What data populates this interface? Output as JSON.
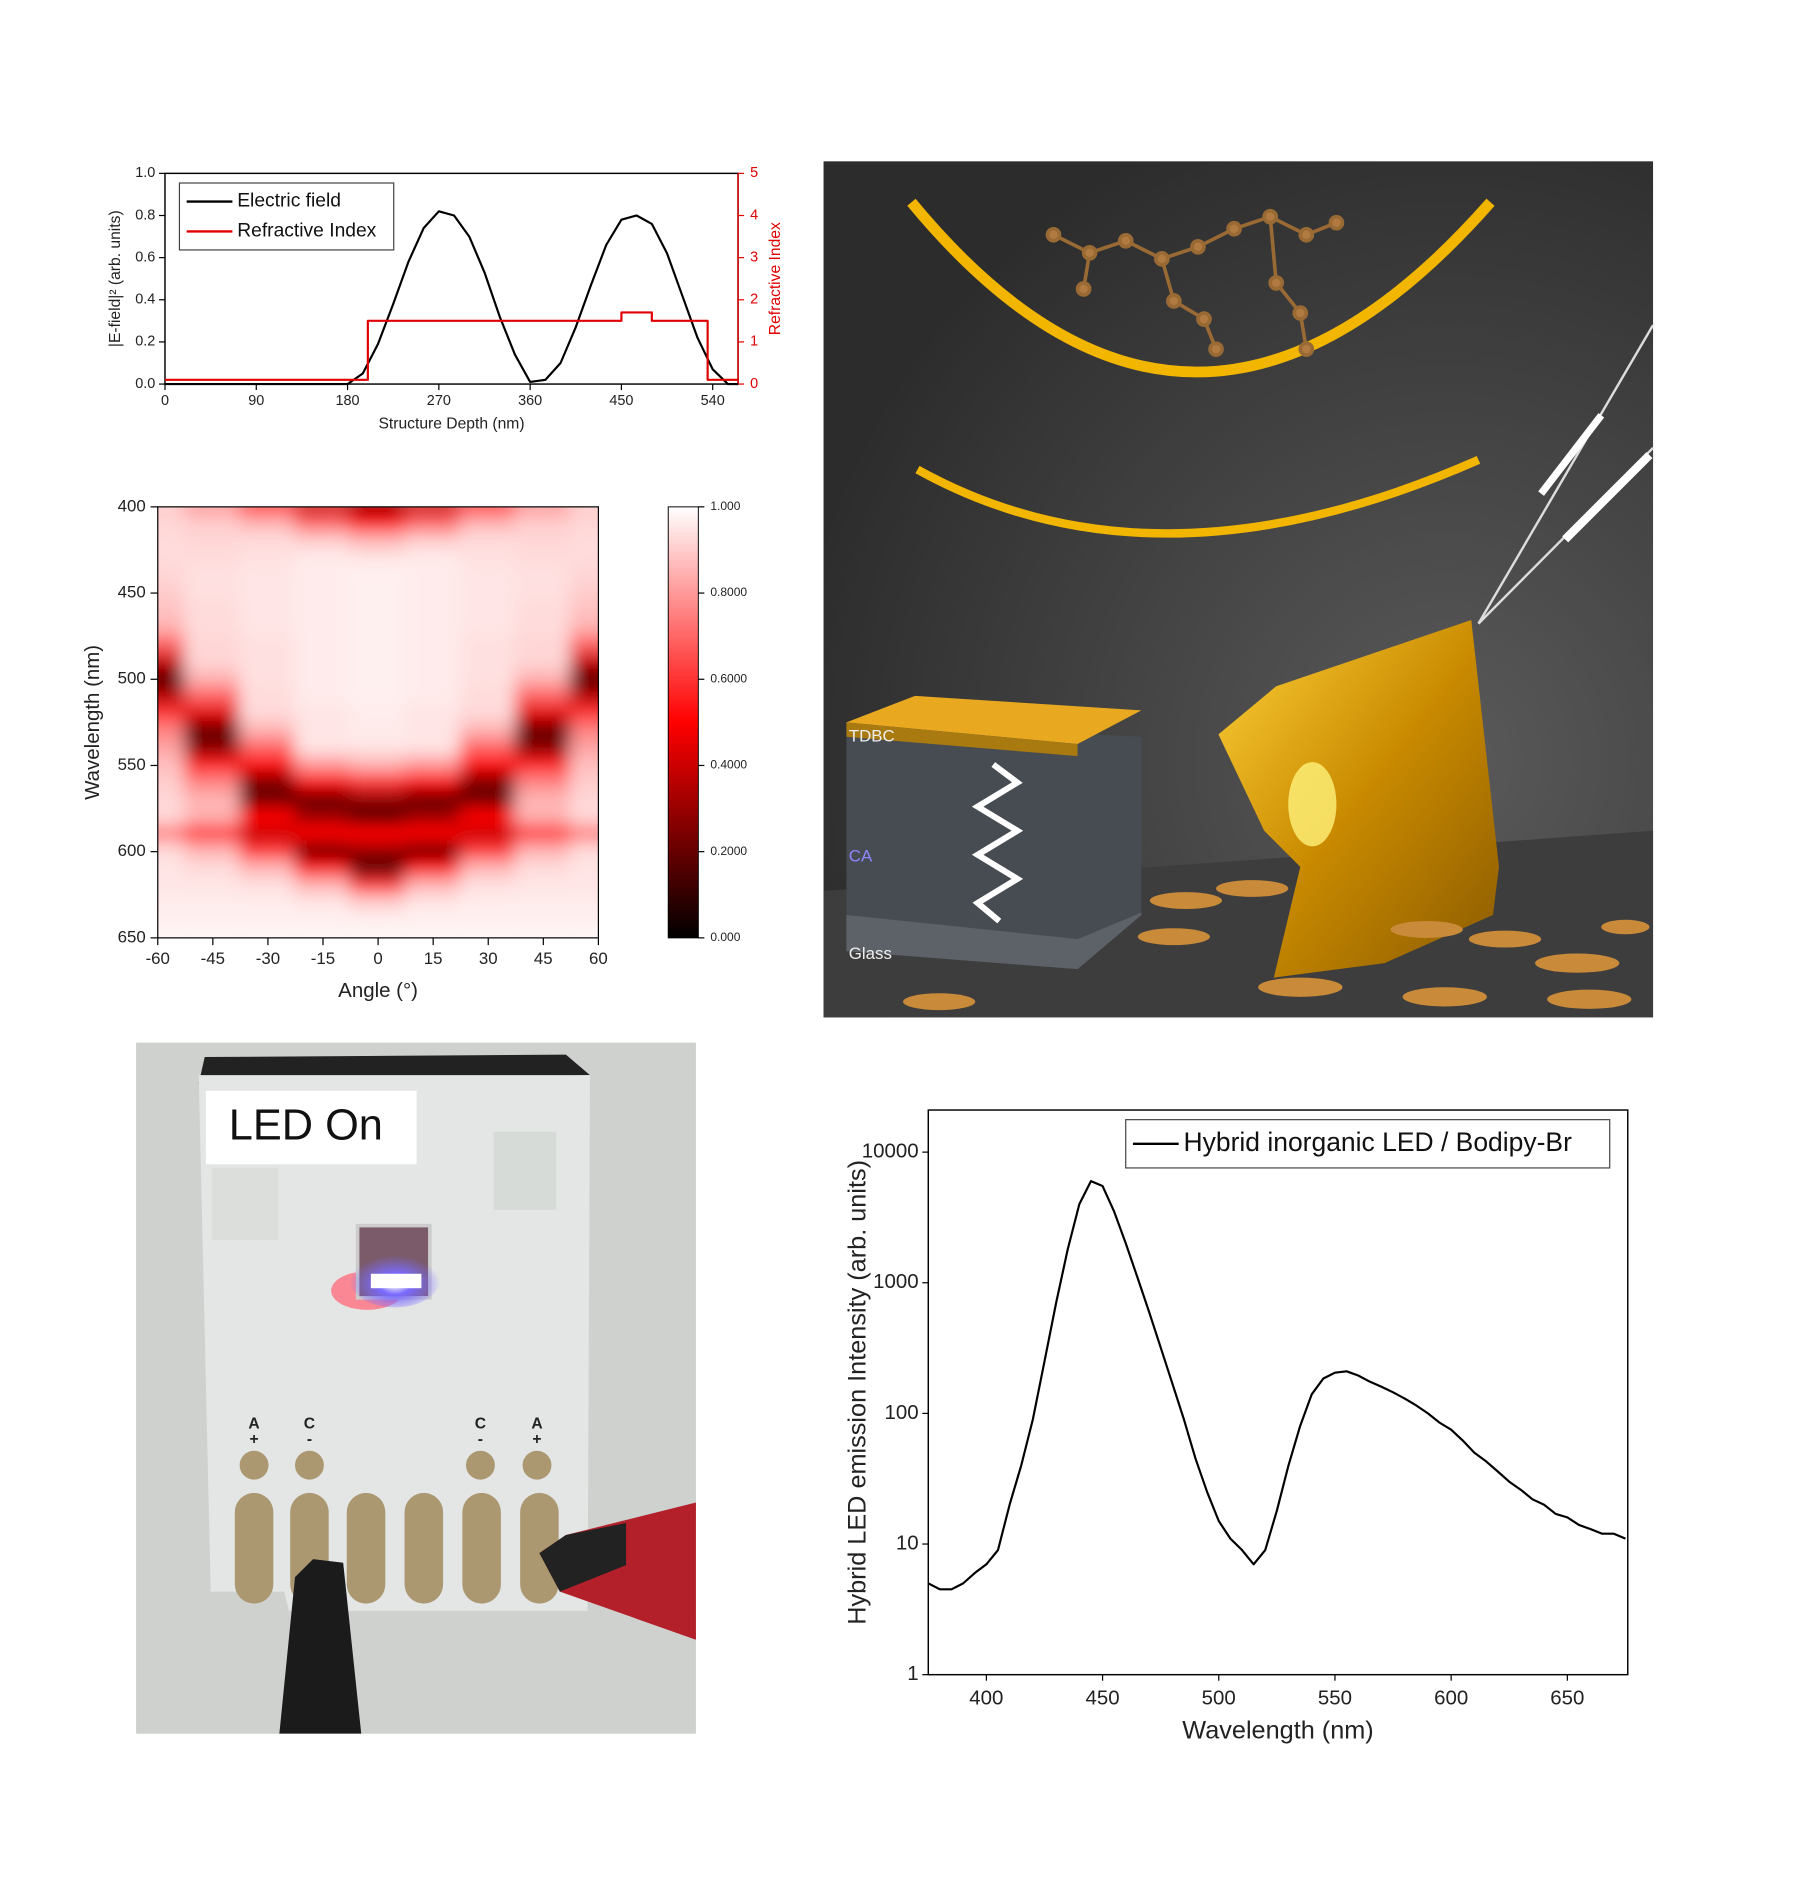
{
  "chart_data": [
    {
      "type": "line",
      "xlabel": "Structure Depth (nm)",
      "ylabel": "|E-field|² (arb. units)",
      "y2label": "Refractive Index",
      "xlim": [
        0,
        565
      ],
      "xticks": [
        0,
        90,
        180,
        270,
        360,
        450,
        540
      ],
      "ylim": [
        0,
        1
      ],
      "yticks": [
        {
          "value": 0,
          "label": "0.0"
        },
        0.2,
        0.4,
        0.6,
        0.8,
        {
          "value": 1,
          "label": "1.0"
        }
      ],
      "y2lim": [
        0,
        5
      ],
      "y2ticks": [
        0,
        1,
        2,
        3,
        4,
        5
      ],
      "y2color": "#e00000",
      "legend": "upper left",
      "series": [
        {
          "name": "Electric field",
          "color": "#000000",
          "x": [
            0,
            90,
            165,
            180,
            195,
            210,
            225,
            240,
            255,
            270,
            285,
            300,
            315,
            330,
            345,
            360,
            375,
            390,
            405,
            420,
            435,
            450,
            465,
            480,
            495,
            510,
            525,
            540,
            555,
            565
          ],
          "values": [
            0,
            0,
            0,
            0,
            0.05,
            0.19,
            0.38,
            0.58,
            0.74,
            0.82,
            0.8,
            0.7,
            0.53,
            0.32,
            0.14,
            0.01,
            0.02,
            0.1,
            0.27,
            0.47,
            0.66,
            0.78,
            0.8,
            0.76,
            0.62,
            0.42,
            0.22,
            0.07,
            0,
            0
          ]
        },
        {
          "name": "Refractive Index",
          "color": "#e00000",
          "axis": "y2",
          "x": [
            0,
            200,
            200,
            450,
            450,
            480,
            480,
            535,
            535,
            565
          ],
          "values": [
            0.1,
            0.1,
            1.5,
            1.5,
            1.7,
            1.7,
            1.5,
            1.5,
            0.1,
            0.1
          ]
        }
      ]
    },
    {
      "type": "heatmap",
      "xlabel": "Angle (°)",
      "ylabel": "Wavelength (nm)",
      "xlim": [
        -60,
        60
      ],
      "xticks": [
        -60,
        -45,
        -30,
        -15,
        0,
        15,
        30,
        45,
        60
      ],
      "ylim": [
        400,
        650
      ],
      "yticks": [
        400,
        450,
        500,
        550,
        600,
        650
      ],
      "yaxis_inverted": true,
      "clim": [
        0,
        1
      ],
      "cticks": [
        {
          "value": 0,
          "label": "0.000"
        },
        {
          "value": 0.2,
          "label": "0.2000"
        },
        {
          "value": 0.4,
          "label": "0.4000"
        },
        {
          "value": 0.6,
          "label": "0.6000"
        },
        {
          "value": 0.8,
          "label": "0.8000"
        },
        {
          "value": 1,
          "label": "1.000"
        }
      ],
      "x": [
        -60,
        -45,
        -30,
        -15,
        0,
        15,
        30,
        45,
        60
      ],
      "y": [
        400,
        410,
        420,
        430,
        440,
        450,
        460,
        470,
        480,
        490,
        500,
        510,
        520,
        530,
        540,
        550,
        560,
        570,
        580,
        590,
        600,
        610,
        620,
        630,
        640,
        650
      ],
      "z": [
        [
          0.9,
          0.8,
          0.6,
          0.4,
          0.3,
          0.4,
          0.6,
          0.8,
          0.9
        ],
        [
          0.92,
          0.9,
          0.85,
          0.7,
          0.5,
          0.7,
          0.85,
          0.9,
          0.92
        ],
        [
          0.93,
          0.92,
          0.93,
          0.9,
          0.85,
          0.9,
          0.93,
          0.92,
          0.93
        ],
        [
          0.93,
          0.93,
          0.94,
          0.96,
          0.95,
          0.96,
          0.94,
          0.93,
          0.93
        ],
        [
          0.92,
          0.94,
          0.95,
          0.96,
          0.97,
          0.96,
          0.95,
          0.94,
          0.92
        ],
        [
          0.9,
          0.94,
          0.95,
          0.96,
          0.97,
          0.96,
          0.95,
          0.94,
          0.9
        ],
        [
          0.88,
          0.93,
          0.95,
          0.96,
          0.97,
          0.96,
          0.95,
          0.93,
          0.88
        ],
        [
          0.85,
          0.93,
          0.95,
          0.96,
          0.97,
          0.96,
          0.95,
          0.93,
          0.85
        ],
        [
          0.7,
          0.92,
          0.94,
          0.96,
          0.97,
          0.96,
          0.94,
          0.92,
          0.7
        ],
        [
          0.4,
          0.92,
          0.94,
          0.96,
          0.97,
          0.96,
          0.94,
          0.92,
          0.4
        ],
        [
          0.15,
          0.85,
          0.94,
          0.96,
          0.97,
          0.96,
          0.94,
          0.85,
          0.15
        ],
        [
          0.35,
          0.7,
          0.93,
          0.96,
          0.97,
          0.96,
          0.93,
          0.7,
          0.35
        ],
        [
          0.6,
          0.45,
          0.93,
          0.95,
          0.96,
          0.95,
          0.93,
          0.45,
          0.6
        ],
        [
          0.75,
          0.2,
          0.85,
          0.95,
          0.96,
          0.95,
          0.85,
          0.2,
          0.75
        ],
        [
          0.82,
          0.25,
          0.7,
          0.95,
          0.95,
          0.95,
          0.7,
          0.25,
          0.82
        ],
        [
          0.87,
          0.55,
          0.5,
          0.8,
          0.85,
          0.8,
          0.5,
          0.55,
          0.87
        ],
        [
          0.9,
          0.75,
          0.25,
          0.5,
          0.6,
          0.5,
          0.25,
          0.75,
          0.9
        ],
        [
          0.92,
          0.85,
          0.2,
          0.2,
          0.3,
          0.2,
          0.2,
          0.85,
          0.92
        ],
        [
          0.93,
          0.85,
          0.5,
          0.3,
          0.15,
          0.3,
          0.5,
          0.85,
          0.93
        ],
        [
          0.75,
          0.6,
          0.4,
          0.5,
          0.5,
          0.5,
          0.4,
          0.6,
          0.75
        ],
        [
          0.93,
          0.85,
          0.6,
          0.2,
          0.3,
          0.2,
          0.6,
          0.85,
          0.93
        ],
        [
          0.95,
          0.93,
          0.85,
          0.5,
          0.15,
          0.5,
          0.85,
          0.93,
          0.95
        ],
        [
          0.95,
          0.95,
          0.94,
          0.85,
          0.6,
          0.85,
          0.94,
          0.95,
          0.95
        ],
        [
          0.96,
          0.96,
          0.96,
          0.95,
          0.9,
          0.95,
          0.96,
          0.96,
          0.96
        ],
        [
          0.97,
          0.97,
          0.97,
          0.97,
          0.97,
          0.97,
          0.97,
          0.97,
          0.97
        ],
        [
          0.98,
          0.98,
          0.98,
          0.98,
          0.98,
          0.98,
          0.98,
          0.98,
          0.98
        ]
      ]
    },
    {
      "type": "line",
      "xlabel": "Wavelength (nm)",
      "ylabel": "Hybrid LED emission Intensity (arb. units)",
      "xlim": [
        375,
        676
      ],
      "xticks": [
        400,
        450,
        500,
        550,
        600,
        650
      ],
      "yscale": "log",
      "ylim": [
        1,
        21000
      ],
      "yticks": [
        1,
        10,
        100,
        1000,
        10000
      ],
      "legend": "upper right",
      "x": [
        375,
        380,
        385,
        390,
        395,
        400,
        405,
        410,
        415,
        420,
        425,
        430,
        435,
        440,
        445,
        450,
        455,
        460,
        465,
        470,
        475,
        480,
        485,
        490,
        495,
        500,
        505,
        510,
        515,
        520,
        525,
        530,
        535,
        540,
        545,
        550,
        555,
        560,
        565,
        570,
        575,
        580,
        585,
        590,
        595,
        600,
        605,
        610,
        615,
        620,
        625,
        630,
        635,
        640,
        645,
        650,
        655,
        660,
        665,
        670,
        675
      ],
      "series": [
        {
          "name": "Hybrid inorganic LED / Bodipy-Br",
          "color": "#000000",
          "values": [
            5,
            4.5,
            4.5,
            5,
            6,
            7,
            9,
            20,
            40,
            90,
            250,
            700,
            1800,
            4000,
            6000,
            5500,
            3500,
            2000,
            1100,
            600,
            320,
            170,
            90,
            45,
            25,
            15,
            11,
            9,
            7,
            9,
            18,
            40,
            80,
            140,
            185,
            205,
            210,
            195,
            175,
            160,
            145,
            130,
            115,
            100,
            85,
            75,
            62,
            50,
            43,
            36,
            30,
            26,
            22,
            20,
            17,
            16,
            14,
            13,
            12,
            12,
            11
          ]
        }
      ]
    }
  ],
  "render": {
    "labels": [
      "TDBC",
      "CA",
      "Glass"
    ]
  },
  "photo": {
    "caption": "LED On",
    "pad_labels": [
      [
        "A",
        "+"
      ],
      [
        "C",
        "-"
      ],
      [
        "C",
        "-"
      ],
      [
        "A",
        "+"
      ]
    ]
  }
}
